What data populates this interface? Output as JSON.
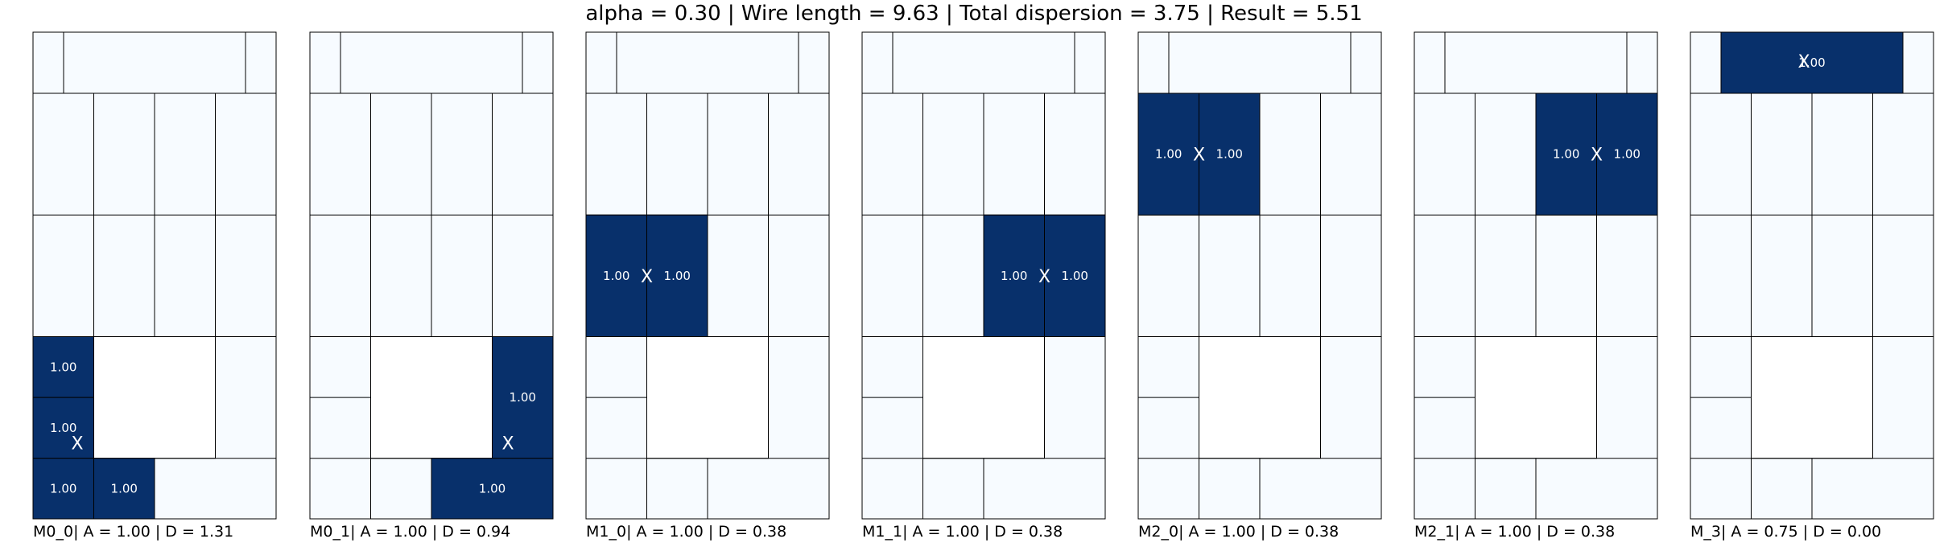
{
  "title": "alpha = 0.30 | Wire length = 9.63 | Total dispersion = 3.75 | Result = 5.51",
  "colors": {
    "filled": "#08306b",
    "empty": "#f7fbff",
    "hole": "#ffffff",
    "border": "#000000",
    "mark": "#ffffff"
  },
  "panels": [
    {
      "label": "M0_0| A = 1.00 | D = 1.31",
      "cells": [
        {
          "r": 0,
          "c": 0,
          "rs": 1,
          "cs": 1,
          "v": 1.0
        },
        {
          "r": 1,
          "c": 0,
          "rs": 1,
          "cs": 1,
          "v": 1.0
        },
        {
          "r": 2,
          "c": 0,
          "rs": 1,
          "cs": 1,
          "v": 1.0
        },
        {
          "r": 2,
          "c": 1,
          "rs": 1,
          "cs": 1,
          "v": 1.0
        }
      ],
      "centroid": {
        "row": 1.25,
        "col": 0.75
      }
    },
    {
      "label": "M0_1| A = 1.00 | D = 0.94",
      "cells": [
        {
          "r": 0,
          "c": 3,
          "rs": 2,
          "cs": 1,
          "v": 1.0
        },
        {
          "r": 2,
          "c": 2,
          "rs": 1,
          "cs": 2,
          "v": 1.0
        }
      ],
      "centroid": {
        "row": 1.25,
        "col": 3.25
      }
    },
    {
      "label": "M1_0| A = 1.00 | D = 0.38",
      "cells": [
        {
          "r": 0,
          "c": 0,
          "rs": 1,
          "cs": 1,
          "v": 1.0
        },
        {
          "r": 0,
          "c": 1,
          "rs": 1,
          "cs": 1,
          "v": 1.0
        }
      ],
      "centroid": {
        "row": 0.5,
        "col": 1.0
      }
    },
    {
      "label": "M1_1| A = 1.00 | D = 0.38",
      "cells": [
        {
          "r": 0,
          "c": 2,
          "rs": 1,
          "cs": 1,
          "v": 1.0
        },
        {
          "r": 0,
          "c": 3,
          "rs": 1,
          "cs": 1,
          "v": 1.0
        }
      ],
      "centroid": {
        "row": 0.5,
        "col": 3.0
      }
    },
    {
      "label": "M2_0| A = 1.00 | D = 0.38",
      "cells": [
        {
          "r": 0,
          "c": 0,
          "rs": 1,
          "cs": 1,
          "v": 1.0
        },
        {
          "r": 0,
          "c": 1,
          "rs": 1,
          "cs": 1,
          "v": 1.0
        }
      ],
      "centroid": {
        "row": 0.5,
        "col": 1.0
      }
    },
    {
      "label": "M2_1| A = 1.00 | D = 0.38",
      "cells": [
        {
          "r": 0,
          "c": 2,
          "rs": 1,
          "cs": 1,
          "v": 1.0
        },
        {
          "r": 0,
          "c": 3,
          "rs": 1,
          "cs": 1,
          "v": 1.0
        }
      ],
      "centroid": {
        "row": 0.5,
        "col": 3.0
      }
    },
    {
      "label": "M_3| A = 0.75 | D = 0.00",
      "cells": [
        {
          "r": 0,
          "c": 1,
          "rs": 1,
          "cs": 1,
          "v": 1.0
        }
      ],
      "centroid": {
        "row": 0.5,
        "col": 2.0
      }
    }
  ]
}
